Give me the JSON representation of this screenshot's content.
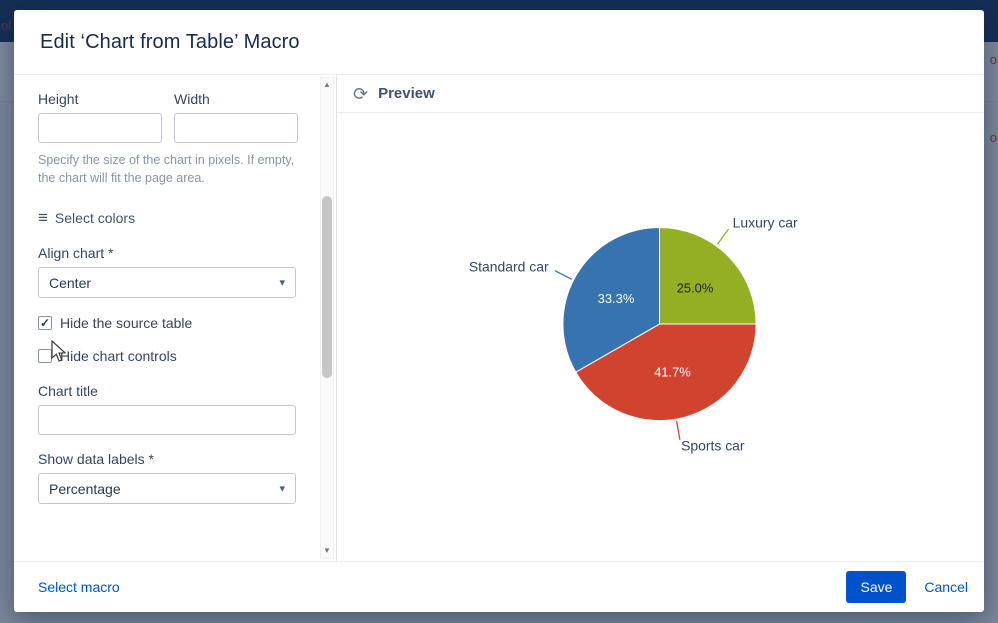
{
  "backdrop": {
    "fragments": {
      "left_text": "ol",
      "right_text_1": "o",
      "right_text_2": "o"
    }
  },
  "icons": {
    "burger": "≡",
    "refresh": "⟳",
    "caret": "▾",
    "scroll_up": "▲",
    "scroll_down": "▼",
    "check": "✓"
  },
  "dialog": {
    "title": "Edit ‘Chart from Table’ Macro",
    "form": {
      "height_label": "Height",
      "height_value": "",
      "width_label": "Width",
      "width_value": "",
      "size_help": "Specify the size of the chart in pixels. If empty, the chart will fit the page area.",
      "select_colors_label": "Select colors",
      "align_label": "Align chart *",
      "align_value": "Center",
      "hide_source_label": "Hide the source table",
      "hide_source_checked": true,
      "hide_controls_label": "Hide chart controls",
      "hide_controls_checked": false,
      "chart_title_label": "Chart title",
      "chart_title_value": "",
      "show_labels_label": "Show data labels *",
      "show_labels_value": "Percentage"
    },
    "preview": {
      "header": "Preview"
    },
    "footer": {
      "select_macro": "Select macro",
      "save": "Save",
      "cancel": "Cancel"
    }
  },
  "colors": {
    "save_button": "#0052cc",
    "link": "#0052cc",
    "pie_blue": "#3673af",
    "pie_green": "#94af23",
    "pie_red": "#d0432f"
  },
  "chart_data": {
    "type": "pie",
    "title": "",
    "legend": "none",
    "start_angle_deg": 0,
    "direction": "clockwise",
    "slices": [
      {
        "label": "Luxury car",
        "value": 25.0,
        "display": "25.0%",
        "color": "#94af23",
        "text_color": "#1c2024",
        "callout_angle": 36
      },
      {
        "label": "Sports car",
        "value": 41.7,
        "display": "41.7%",
        "color": "#d0432f",
        "text_color": "#ffffff",
        "callout_angle": 170
      },
      {
        "label": "Standard car",
        "value": 33.3,
        "display": "33.3%",
        "color": "#3673af",
        "text_color": "#ffffff",
        "callout_angle": 297
      }
    ]
  }
}
